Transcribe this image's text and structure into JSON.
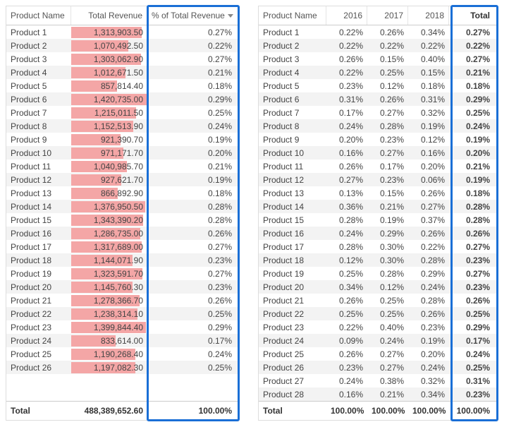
{
  "left_table": {
    "columns": [
      "Product Name",
      "Total Revenue",
      "% of Total Revenue"
    ],
    "bar_color": "#f4a6a6",
    "alt_row_bg": "#f3f3f3",
    "highlight_border": "#1a6fd6",
    "max_revenue": 1420735.0,
    "rows": [
      {
        "name": "Product 1",
        "rev": "1,313,903.50",
        "pct": "0.27%",
        "bar": 0.925
      },
      {
        "name": "Product 2",
        "rev": "1,070,492.50",
        "pct": "0.22%",
        "bar": 0.754
      },
      {
        "name": "Product 3",
        "rev": "1,303,062.90",
        "pct": "0.27%",
        "bar": 0.917
      },
      {
        "name": "Product 4",
        "rev": "1,012,671.50",
        "pct": "0.21%",
        "bar": 0.713
      },
      {
        "name": "Product 5",
        "rev": "857,814.40",
        "pct": "0.18%",
        "bar": 0.604
      },
      {
        "name": "Product 6",
        "rev": "1,420,735.00",
        "pct": "0.29%",
        "bar": 1.0
      },
      {
        "name": "Product 7",
        "rev": "1,215,011.50",
        "pct": "0.25%",
        "bar": 0.855
      },
      {
        "name": "Product 8",
        "rev": "1,152,513.90",
        "pct": "0.24%",
        "bar": 0.811
      },
      {
        "name": "Product 9",
        "rev": "921,390.70",
        "pct": "0.19%",
        "bar": 0.649
      },
      {
        "name": "Product 10",
        "rev": "971,171.70",
        "pct": "0.20%",
        "bar": 0.684
      },
      {
        "name": "Product 11",
        "rev": "1,040,985.70",
        "pct": "0.21%",
        "bar": 0.733
      },
      {
        "name": "Product 12",
        "rev": "927,621.70",
        "pct": "0.19%",
        "bar": 0.653
      },
      {
        "name": "Product 13",
        "rev": "866,892.90",
        "pct": "0.18%",
        "bar": 0.61
      },
      {
        "name": "Product 14",
        "rev": "1,376,950.50",
        "pct": "0.28%",
        "bar": 0.969
      },
      {
        "name": "Product 15",
        "rev": "1,343,390.20",
        "pct": "0.28%",
        "bar": 0.946
      },
      {
        "name": "Product 16",
        "rev": "1,286,735.00",
        "pct": "0.26%",
        "bar": 0.906
      },
      {
        "name": "Product 17",
        "rev": "1,317,689.00",
        "pct": "0.27%",
        "bar": 0.927
      },
      {
        "name": "Product 18",
        "rev": "1,144,071.90",
        "pct": "0.23%",
        "bar": 0.805
      },
      {
        "name": "Product 19",
        "rev": "1,323,591.70",
        "pct": "0.27%",
        "bar": 0.932
      },
      {
        "name": "Product 20",
        "rev": "1,145,760.30",
        "pct": "0.23%",
        "bar": 0.807
      },
      {
        "name": "Product 21",
        "rev": "1,278,366.70",
        "pct": "0.26%",
        "bar": 0.9
      },
      {
        "name": "Product 22",
        "rev": "1,238,314.10",
        "pct": "0.25%",
        "bar": 0.872
      },
      {
        "name": "Product 23",
        "rev": "1,399,844.40",
        "pct": "0.29%",
        "bar": 0.985
      },
      {
        "name": "Product 24",
        "rev": "833,614.00",
        "pct": "0.17%",
        "bar": 0.587
      },
      {
        "name": "Product 25",
        "rev": "1,190,268.40",
        "pct": "0.24%",
        "bar": 0.838
      },
      {
        "name": "Product 26",
        "rev": "1,197,082.30",
        "pct": "0.25%",
        "bar": 0.843
      }
    ],
    "total_label": "Total",
    "total_rev": "488,389,652.60",
    "total_pct": "100.00%"
  },
  "right_table": {
    "columns": [
      "Product Name",
      "2016",
      "2017",
      "2018",
      "Total"
    ],
    "alt_row_bg": "#f3f3f3",
    "highlight_border": "#1a6fd6",
    "rows": [
      {
        "name": "Product 1",
        "y16": "0.22%",
        "y17": "0.26%",
        "y18": "0.34%",
        "tot": "0.27%"
      },
      {
        "name": "Product 2",
        "y16": "0.22%",
        "y17": "0.22%",
        "y18": "0.22%",
        "tot": "0.22%"
      },
      {
        "name": "Product 3",
        "y16": "0.26%",
        "y17": "0.15%",
        "y18": "0.40%",
        "tot": "0.27%"
      },
      {
        "name": "Product 4",
        "y16": "0.22%",
        "y17": "0.25%",
        "y18": "0.15%",
        "tot": "0.21%"
      },
      {
        "name": "Product 5",
        "y16": "0.23%",
        "y17": "0.12%",
        "y18": "0.18%",
        "tot": "0.18%"
      },
      {
        "name": "Product 6",
        "y16": "0.31%",
        "y17": "0.26%",
        "y18": "0.31%",
        "tot": "0.29%"
      },
      {
        "name": "Product 7",
        "y16": "0.17%",
        "y17": "0.27%",
        "y18": "0.32%",
        "tot": "0.25%"
      },
      {
        "name": "Product 8",
        "y16": "0.24%",
        "y17": "0.28%",
        "y18": "0.19%",
        "tot": "0.24%"
      },
      {
        "name": "Product 9",
        "y16": "0.20%",
        "y17": "0.23%",
        "y18": "0.12%",
        "tot": "0.19%"
      },
      {
        "name": "Product 10",
        "y16": "0.16%",
        "y17": "0.27%",
        "y18": "0.16%",
        "tot": "0.20%"
      },
      {
        "name": "Product 11",
        "y16": "0.26%",
        "y17": "0.17%",
        "y18": "0.20%",
        "tot": "0.21%"
      },
      {
        "name": "Product 12",
        "y16": "0.27%",
        "y17": "0.23%",
        "y18": "0.06%",
        "tot": "0.19%"
      },
      {
        "name": "Product 13",
        "y16": "0.13%",
        "y17": "0.15%",
        "y18": "0.26%",
        "tot": "0.18%"
      },
      {
        "name": "Product 14",
        "y16": "0.36%",
        "y17": "0.21%",
        "y18": "0.27%",
        "tot": "0.28%"
      },
      {
        "name": "Product 15",
        "y16": "0.28%",
        "y17": "0.19%",
        "y18": "0.37%",
        "tot": "0.28%"
      },
      {
        "name": "Product 16",
        "y16": "0.24%",
        "y17": "0.29%",
        "y18": "0.26%",
        "tot": "0.26%"
      },
      {
        "name": "Product 17",
        "y16": "0.28%",
        "y17": "0.30%",
        "y18": "0.22%",
        "tot": "0.27%"
      },
      {
        "name": "Product 18",
        "y16": "0.12%",
        "y17": "0.30%",
        "y18": "0.28%",
        "tot": "0.23%"
      },
      {
        "name": "Product 19",
        "y16": "0.25%",
        "y17": "0.28%",
        "y18": "0.29%",
        "tot": "0.27%"
      },
      {
        "name": "Product 20",
        "y16": "0.34%",
        "y17": "0.12%",
        "y18": "0.24%",
        "tot": "0.23%"
      },
      {
        "name": "Product 21",
        "y16": "0.26%",
        "y17": "0.25%",
        "y18": "0.28%",
        "tot": "0.26%"
      },
      {
        "name": "Product 22",
        "y16": "0.25%",
        "y17": "0.25%",
        "y18": "0.26%",
        "tot": "0.25%"
      },
      {
        "name": "Product 23",
        "y16": "0.22%",
        "y17": "0.40%",
        "y18": "0.23%",
        "tot": "0.29%"
      },
      {
        "name": "Product 24",
        "y16": "0.09%",
        "y17": "0.24%",
        "y18": "0.19%",
        "tot": "0.17%"
      },
      {
        "name": "Product 25",
        "y16": "0.26%",
        "y17": "0.27%",
        "y18": "0.20%",
        "tot": "0.24%"
      },
      {
        "name": "Product 26",
        "y16": "0.23%",
        "y17": "0.27%",
        "y18": "0.24%",
        "tot": "0.25%"
      },
      {
        "name": "Product 27",
        "y16": "0.24%",
        "y17": "0.38%",
        "y18": "0.32%",
        "tot": "0.31%"
      },
      {
        "name": "Product 28",
        "y16": "0.16%",
        "y17": "0.21%",
        "y18": "0.34%",
        "tot": "0.23%"
      }
    ],
    "total_label": "Total",
    "tot16": "100.00%",
    "tot17": "100.00%",
    "tot18": "100.00%",
    "totall": "100.00%"
  }
}
